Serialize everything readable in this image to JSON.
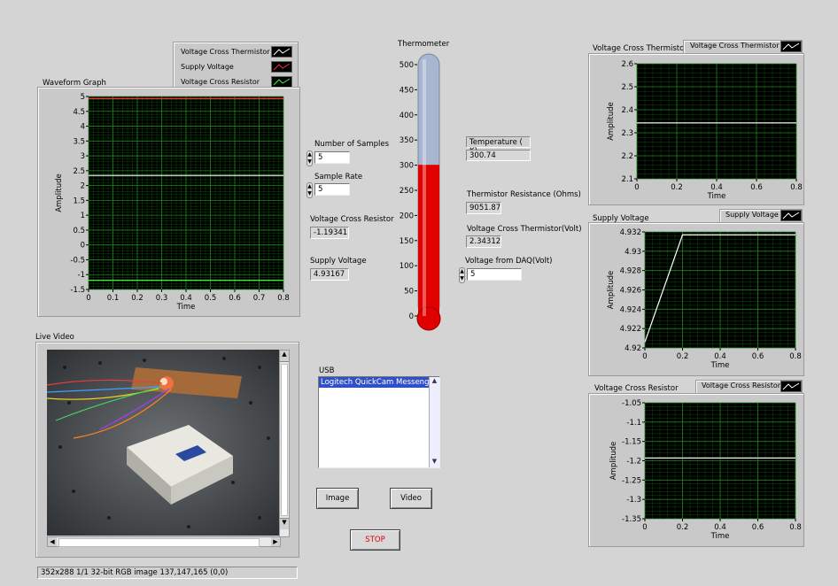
{
  "waveform": {
    "title": "Waveform Graph",
    "legend": [
      "Voltage Cross Thermistor",
      "Supply Voltage",
      "Voltage Cross Resistor"
    ],
    "xlabel": "Time",
    "ylabel": "Amplitude",
    "yticks": [
      "5",
      "4.5",
      "4",
      "3.5",
      "3",
      "2.5",
      "2",
      "1.5",
      "1",
      "0.5",
      "0",
      "-0.5",
      "-1",
      "-1.5"
    ],
    "xticks": [
      "0",
      "0.1",
      "0.2",
      "0.3",
      "0.4",
      "0.5",
      "0.6",
      "0.7",
      "0.8"
    ]
  },
  "controls": {
    "samples_label": "Number of Samples",
    "samples_value": "5",
    "rate_label": "Sample Rate",
    "rate_value": "5",
    "vresistor_label": "Voltage Cross Resistor",
    "vresistor_value": "-1.19341",
    "supply_label": "Supply Voltage",
    "supply_value": "4.93167"
  },
  "thermometer": {
    "title": "Thermometer",
    "ticks": [
      "500",
      "450",
      "400",
      "350",
      "300",
      "250",
      "200",
      "150",
      "100",
      "50",
      "0"
    ],
    "level": 300.74,
    "max": 500,
    "fill_color": "#e00000",
    "empty_color": "#a9b6d0"
  },
  "readouts": {
    "temp_label": "Temperature ( K)",
    "temp_value": "300.74",
    "res_label": "Thermistor Resistance (Ohms)",
    "res_value": "9051.87",
    "vtherm_label": "Voltage Cross Thermistor(Volt)",
    "vtherm_value": "2.34312",
    "vdaq_label": "Voltage  from DAQ(Volt)",
    "vdaq_value": "5"
  },
  "video": {
    "title": "Live Video",
    "status": "352x288 1/1 32-bit RGB image 137,147,165     (0,0)"
  },
  "usb": {
    "label": "USB",
    "items": [
      "Logitech QuickCam Messenger"
    ]
  },
  "buttons": {
    "image": "Image",
    "video": "Video",
    "stop": "STOP"
  },
  "graph1": {
    "title": "Voltage Cross Thermistor",
    "legend": "Voltage Cross Thermistor",
    "xlabel": "Time",
    "ylabel": "Amplitude",
    "yticks": [
      "2.6",
      "2.5",
      "2.4",
      "2.3",
      "2.2",
      "2.1"
    ],
    "xticks": [
      "0",
      "0.2",
      "0.4",
      "0.6",
      "0.8"
    ]
  },
  "graph2": {
    "title": "Supply Voltage",
    "legend": "Supply Voltage",
    "xlabel": "Time",
    "ylabel": "Amplitude",
    "yticks": [
      "4.932",
      "4.93",
      "4.928",
      "4.926",
      "4.924",
      "4.922",
      "4.92"
    ],
    "xticks": [
      "0",
      "0.2",
      "0.4",
      "0.6",
      "0.8"
    ]
  },
  "graph3": {
    "title": "Voltage Cross Resistor",
    "legend": "Voltage Cross Resistor",
    "xlabel": "Time",
    "ylabel": "Amplitude",
    "yticks": [
      "-1.05",
      "-1.1",
      "-1.15",
      "-1.2",
      "-1.25",
      "-1.3",
      "-1.35"
    ],
    "xticks": [
      "0",
      "0.2",
      "0.4",
      "0.6",
      "0.8"
    ]
  },
  "chart_data": [
    {
      "type": "line",
      "title": "Waveform Graph",
      "xlabel": "Time",
      "ylabel": "Amplitude",
      "xlim": [
        0,
        0.8
      ],
      "ylim": [
        -1.5,
        5
      ],
      "grid": true,
      "series": [
        {
          "name": "Voltage Cross Thermistor",
          "color": "#ffffff",
          "x": [
            0,
            0.8
          ],
          "y": [
            2.34,
            2.34
          ]
        },
        {
          "name": "Supply Voltage",
          "color": "#ff3030",
          "x": [
            0,
            0.8
          ],
          "y": [
            4.93,
            4.93
          ]
        },
        {
          "name": "Voltage Cross Resistor",
          "color": "#30ff30",
          "x": [
            0,
            0.8
          ],
          "y": [
            -1.19,
            -1.19
          ]
        }
      ]
    },
    {
      "type": "line",
      "title": "Voltage Cross Thermistor",
      "xlabel": "Time",
      "ylabel": "Amplitude",
      "xlim": [
        0,
        0.8
      ],
      "ylim": [
        2.1,
        2.6
      ],
      "grid": true,
      "series": [
        {
          "name": "Voltage Cross Thermistor",
          "color": "#ffffff",
          "x": [
            0,
            0.8
          ],
          "y": [
            2.343,
            2.343
          ]
        }
      ]
    },
    {
      "type": "line",
      "title": "Supply Voltage",
      "xlabel": "Time",
      "ylabel": "Amplitude",
      "xlim": [
        0,
        0.8
      ],
      "ylim": [
        4.92,
        4.932
      ],
      "grid": true,
      "series": [
        {
          "name": "Supply Voltage",
          "color": "#ffffff",
          "x": [
            0,
            0.2,
            0.8
          ],
          "y": [
            4.9206,
            4.9317,
            4.9317
          ]
        }
      ]
    },
    {
      "type": "line",
      "title": "Voltage Cross Resistor",
      "xlabel": "Time",
      "ylabel": "Amplitude",
      "xlim": [
        0,
        0.8
      ],
      "ylim": [
        -1.35,
        -1.05
      ],
      "grid": true,
      "series": [
        {
          "name": "Voltage Cross Resistor",
          "color": "#ffffff",
          "x": [
            0,
            0.8
          ],
          "y": [
            -1.193,
            -1.193
          ]
        }
      ]
    }
  ]
}
